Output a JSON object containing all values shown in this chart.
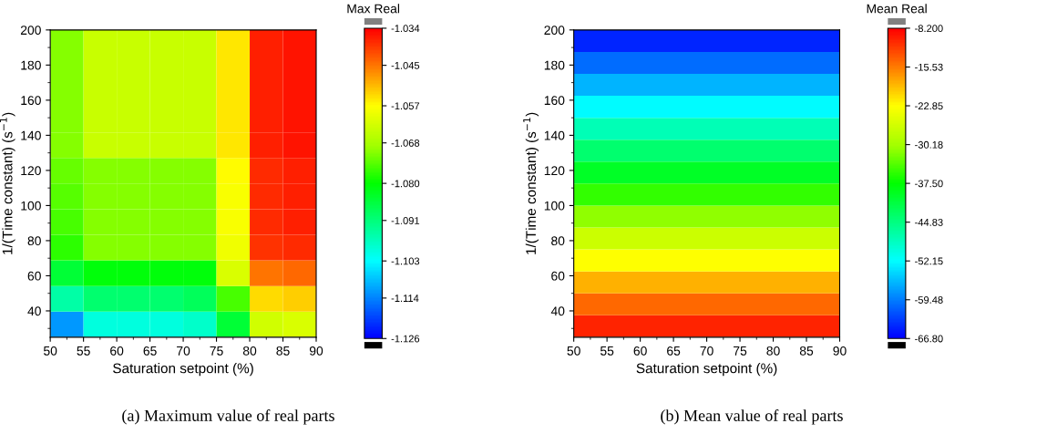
{
  "chart_data": [
    {
      "type": "heatmap",
      "xlabel": "Saturation setpoint (%)",
      "ylabel": "1/(Time constant) (s$^{−1}$)",
      "clabel": "Max Real",
      "annotations": [
        "(a) Maximum value of real parts"
      ],
      "xlim": [
        50,
        90
      ],
      "xticks": [
        50,
        55,
        60,
        65,
        70,
        75,
        80,
        85,
        90
      ],
      "ylim": [
        25,
        200
      ],
      "yticks": [
        40,
        60,
        80,
        100,
        120,
        140,
        160,
        180,
        200
      ],
      "clim": [
        -1.126,
        -1.034
      ],
      "cticks": [
        -1.126,
        -1.114,
        -1.103,
        -1.091,
        {
          "value": -1.08,
          "label": "-1.080"
        },
        -1.068,
        -1.057,
        -1.045,
        -1.034
      ],
      "cells": [
        [
          -1.071,
          -1.064,
          -1.064,
          -1.064,
          -1.064,
          -1.055,
          -1.037,
          -1.036
        ],
        [
          -1.071,
          -1.064,
          -1.064,
          -1.064,
          -1.064,
          -1.055,
          -1.037,
          -1.036
        ],
        [
          -1.071,
          -1.064,
          -1.064,
          -1.064,
          -1.064,
          -1.055,
          -1.037,
          -1.036
        ],
        [
          -1.071,
          -1.064,
          -1.064,
          -1.064,
          -1.064,
          -1.055,
          -1.037,
          -1.036
        ],
        [
          -1.071,
          -1.064,
          -1.064,
          -1.064,
          -1.064,
          -1.055,
          -1.037,
          -1.036
        ],
        [
          -1.073,
          -1.071,
          -1.071,
          -1.071,
          -1.071,
          -1.057,
          -1.038,
          -1.037
        ],
        [
          -1.074,
          -1.071,
          -1.071,
          -1.071,
          -1.071,
          -1.058,
          -1.038,
          -1.037
        ],
        [
          -1.075,
          -1.071,
          -1.071,
          -1.071,
          -1.071,
          -1.058,
          -1.038,
          -1.037
        ],
        [
          -1.077,
          -1.071,
          -1.071,
          -1.071,
          -1.071,
          -1.059,
          -1.039,
          -1.038
        ],
        [
          -1.085,
          -1.081,
          -1.081,
          -1.081,
          -1.081,
          -1.062,
          -1.045,
          -1.044
        ],
        [
          -1.095,
          -1.09,
          -1.09,
          -1.09,
          -1.088,
          -1.075,
          -1.054,
          -1.053
        ],
        [
          -1.112,
          -1.1,
          -1.1,
          -1.1,
          -1.098,
          -1.085,
          -1.063,
          -1.062
        ]
      ]
    },
    {
      "type": "heatmap",
      "xlabel": "Saturation setpoint (%)",
      "ylabel": "1/(Time constant) (s$^{−1}$)",
      "clabel": "Mean Real",
      "annotations": [
        "(b) Mean value of real parts"
      ],
      "xlim": [
        50,
        90
      ],
      "xticks": [
        50,
        55,
        60,
        65,
        70,
        75,
        80,
        85,
        90
      ],
      "ylim": [
        25,
        200
      ],
      "yticks": [
        40,
        60,
        80,
        100,
        120,
        140,
        160,
        180,
        200
      ],
      "clim": [
        -66.8,
        -8.2
      ],
      "cticks": [
        {
          "value": -66.8,
          "label": "-66.80"
        },
        -59.48,
        -52.15,
        -44.83,
        {
          "value": -37.5,
          "label": "-37.50"
        },
        -30.18,
        -22.85,
        -15.53,
        {
          "value": -8.2,
          "label": "-8.200"
        }
      ],
      "cells": [
        [
          -64.7
        ],
        [
          -60.5
        ],
        [
          -56.3
        ],
        [
          -52.2
        ],
        [
          -48.0
        ],
        [
          -43.8
        ],
        [
          -39.6
        ],
        [
          -35.4
        ],
        [
          -31.2
        ],
        [
          -27.0
        ],
        [
          -22.9
        ],
        [
          -18.7
        ],
        [
          -14.5
        ],
        [
          -10.3
        ]
      ]
    }
  ]
}
